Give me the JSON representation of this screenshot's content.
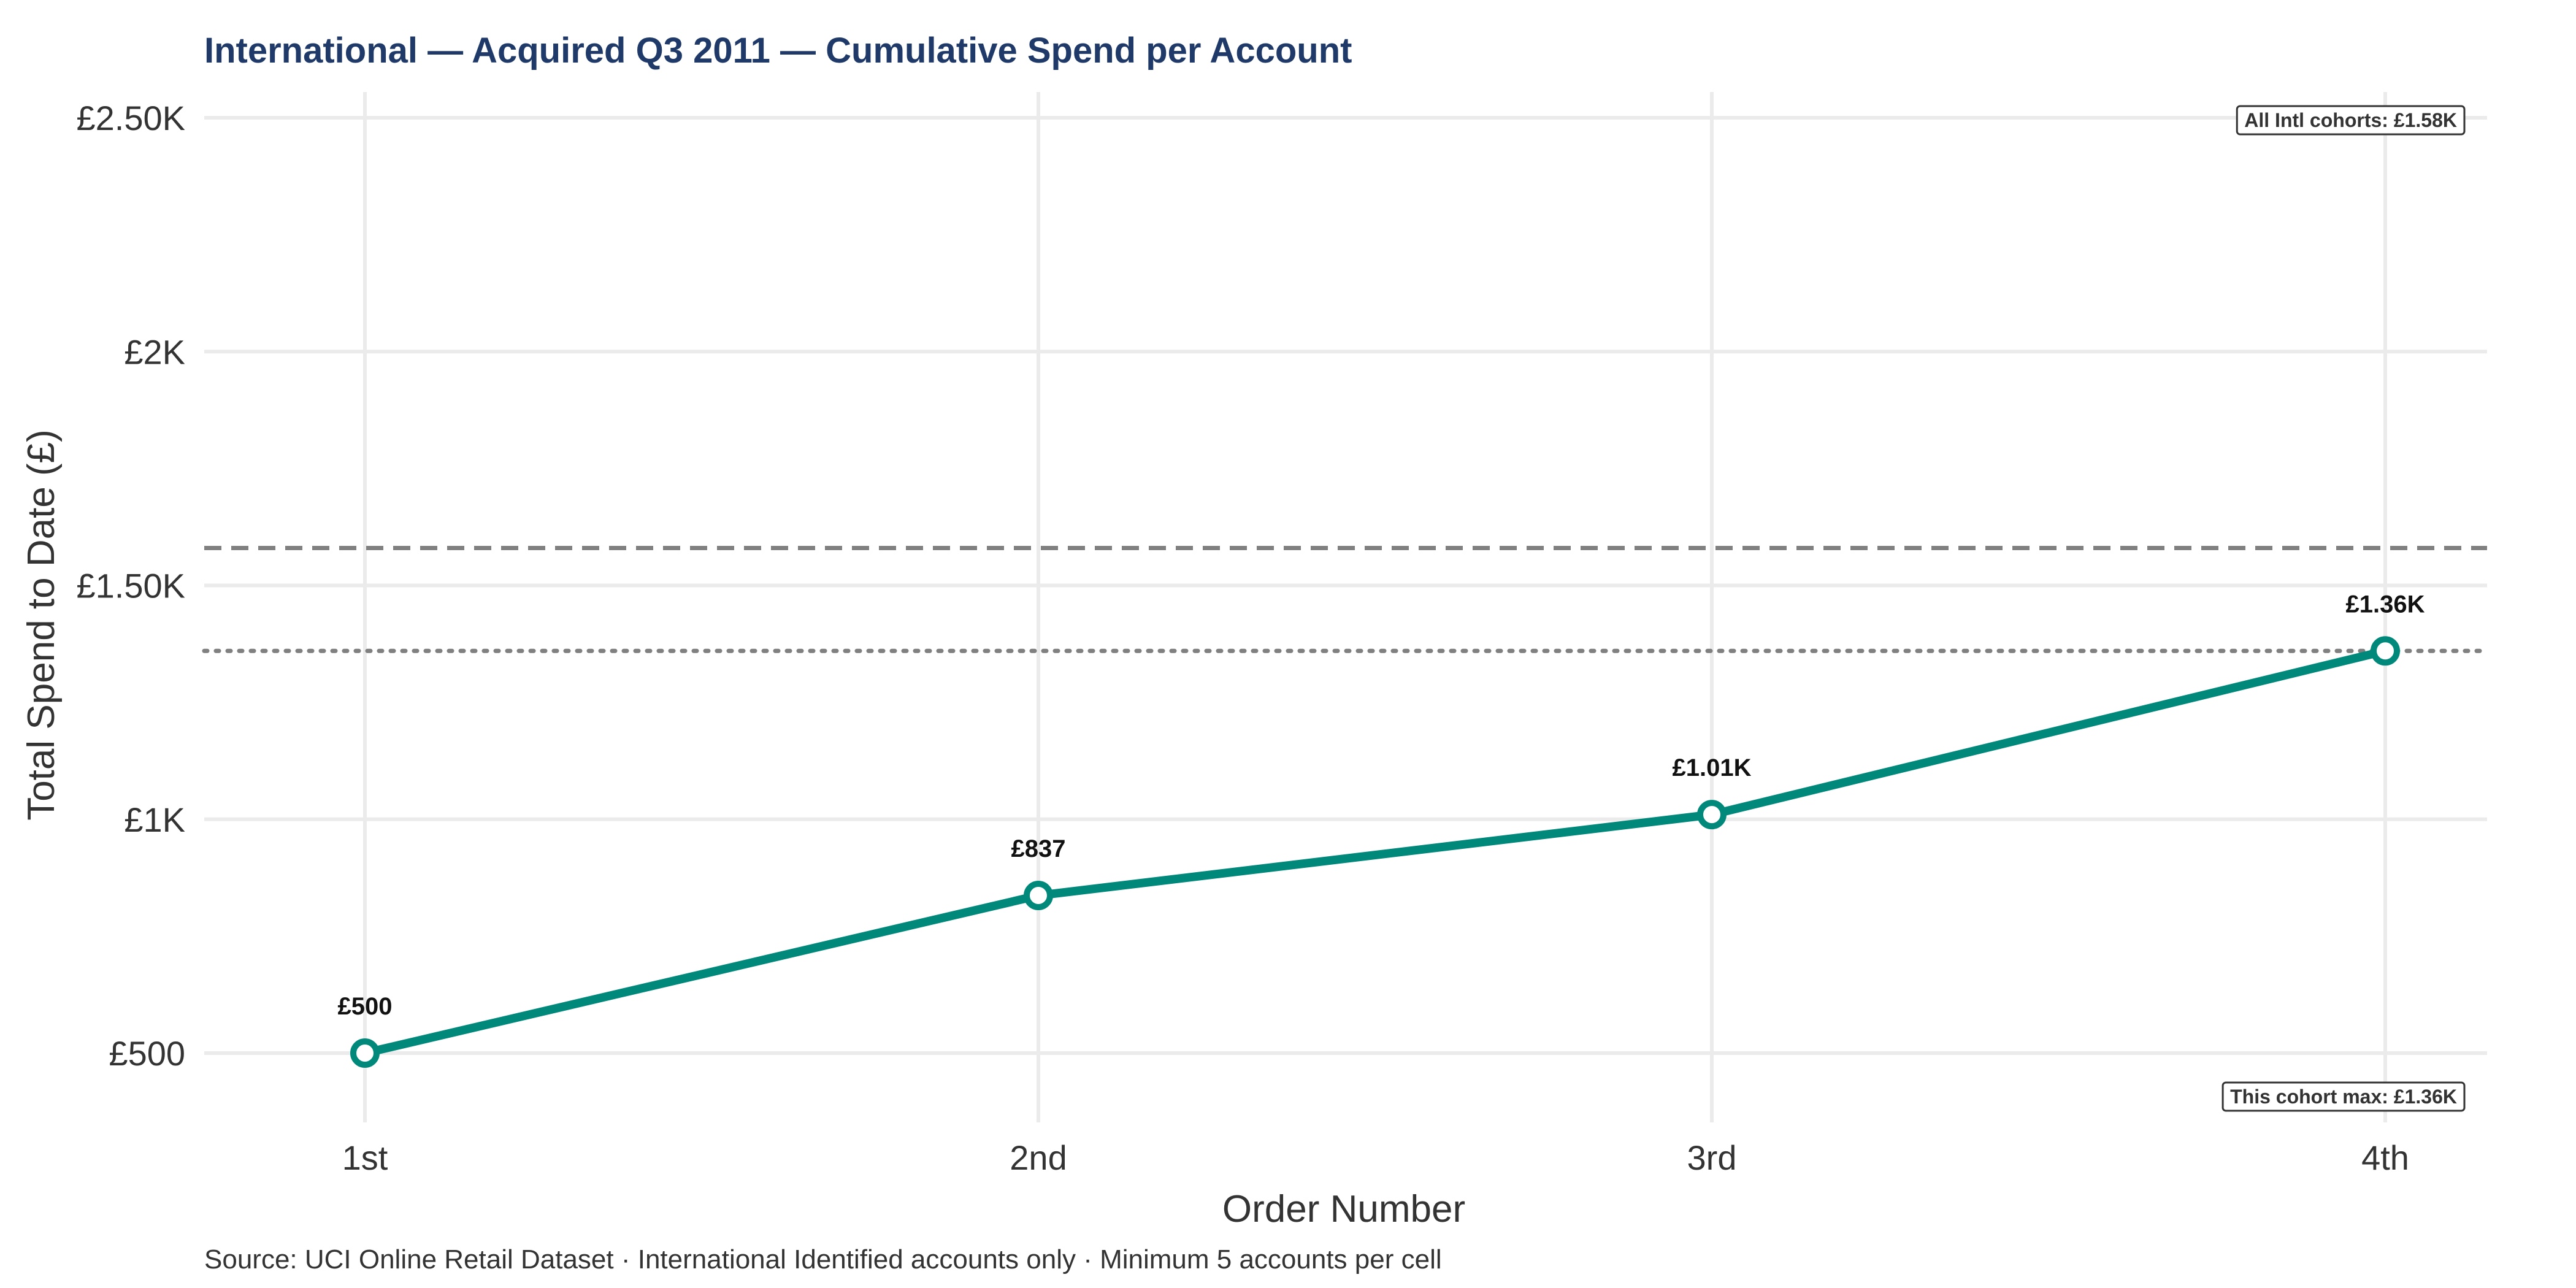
{
  "chart_data": {
    "type": "line",
    "title": "International — Acquired Q3 2011 — Cumulative Spend per Account",
    "xlabel": "Order Number",
    "ylabel": "Total Spend to Date (£)",
    "categories": [
      "1st",
      "2nd",
      "3rd",
      "4th"
    ],
    "series": [
      {
        "values": [
          500,
          837,
          1010,
          1360
        ],
        "labels": [
          "£500",
          "£837",
          "£1.01K",
          "£1.36K"
        ],
        "color": "#00897b"
      }
    ],
    "ylim": [
      370,
      2550
    ],
    "yticks": [
      500,
      1000,
      1500,
      2000,
      2500
    ],
    "ytick_labels": [
      "£500",
      "£1K",
      "£1.50K",
      "£2K",
      "£2.50K"
    ],
    "grid": true,
    "reference_lines": [
      {
        "value": 1580,
        "style": "dashed",
        "label": "All Intl cohorts: £1.58K",
        "color": "#808080"
      },
      {
        "value": 1360,
        "style": "dotted",
        "label": "This cohort max: £1.36K",
        "color": "#808080"
      }
    ],
    "caption": "Source: UCI Online Retail Dataset · International Identified accounts only · Minimum 5 accounts per cell"
  }
}
